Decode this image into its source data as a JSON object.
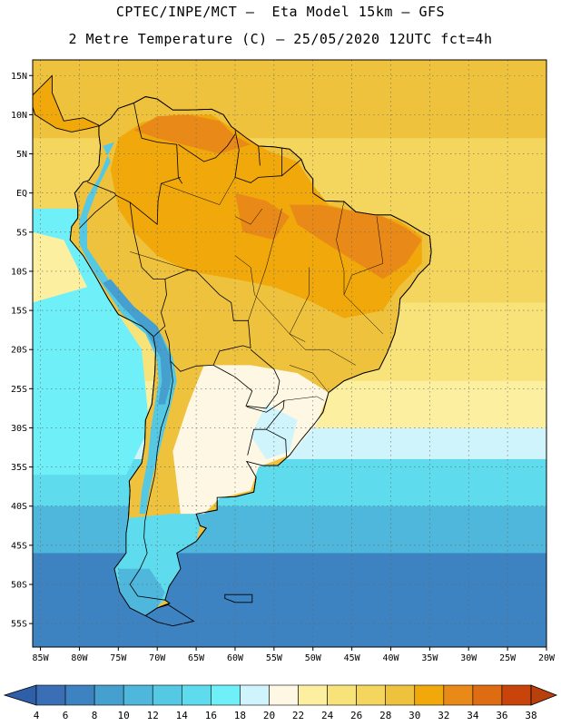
{
  "header": {
    "title_line1": "CPTEC/INPE/MCT –  Eta Model 15km – GFS",
    "title_line2": "2 Metre Temperature (C) – 25/05/2020 12UTC fct=4h"
  },
  "map": {
    "region": "South America",
    "lat_range": [
      -58,
      17
    ],
    "lon_range": [
      -86,
      -20
    ],
    "lat_labels": [
      {
        "lat": 15,
        "label": "15N"
      },
      {
        "lat": 10,
        "label": "10N"
      },
      {
        "lat": 5,
        "label": "5N"
      },
      {
        "lat": 0,
        "label": "EQ"
      },
      {
        "lat": -5,
        "label": "5S"
      },
      {
        "lat": -10,
        "label": "10S"
      },
      {
        "lat": -15,
        "label": "15S"
      },
      {
        "lat": -20,
        "label": "20S"
      },
      {
        "lat": -25,
        "label": "25S"
      },
      {
        "lat": -30,
        "label": "30S"
      },
      {
        "lat": -35,
        "label": "35S"
      },
      {
        "lat": -40,
        "label": "40S"
      },
      {
        "lat": -45,
        "label": "45S"
      },
      {
        "lat": -50,
        "label": "50S"
      },
      {
        "lat": -55,
        "label": "55S"
      }
    ],
    "lon_labels": [
      {
        "lon": -85,
        "label": "85W"
      },
      {
        "lon": -80,
        "label": "80W"
      },
      {
        "lon": -75,
        "label": "75W"
      },
      {
        "lon": -70,
        "label": "70W"
      },
      {
        "lon": -65,
        "label": "65W"
      },
      {
        "lon": -60,
        "label": "60W"
      },
      {
        "lon": -55,
        "label": "55W"
      },
      {
        "lon": -50,
        "label": "50W"
      },
      {
        "lon": -45,
        "label": "45W"
      },
      {
        "lon": -40,
        "label": "40W"
      },
      {
        "lon": -35,
        "label": "35W"
      },
      {
        "lon": -30,
        "label": "30W"
      },
      {
        "lon": -25,
        "label": "25W"
      },
      {
        "lon": -20,
        "label": "20W"
      }
    ]
  },
  "colorbar": {
    "unit": "C",
    "labels": [
      "4",
      "6",
      "8",
      "10",
      "12",
      "14",
      "16",
      "18",
      "20",
      "22",
      "24",
      "26",
      "28",
      "30",
      "32",
      "34",
      "36",
      "38"
    ],
    "colors": [
      "#3a6fb5",
      "#3d83c2",
      "#45a0cf",
      "#4fb6dc",
      "#55c8e4",
      "#5fdbee",
      "#6ff0f8",
      "#d0f4fb",
      "#fdf7e3",
      "#fcefa0",
      "#f8e37a",
      "#f4d65e",
      "#efc23e",
      "#f0a80a",
      "#e98a18",
      "#dd6c12",
      "#c9440b"
    ],
    "under_color": "#2f5fa8",
    "over_color": "#b8400a"
  },
  "temperature_field": {
    "ocean_bands": [
      {
        "lat_top": 17,
        "lat_bottom": 7,
        "value_c": 29
      },
      {
        "lat_top": 7,
        "lat_bottom": -14,
        "value_c": 27
      },
      {
        "lat_top": -14,
        "lat_bottom": -24,
        "value_c": 25
      },
      {
        "lat_top": -24,
        "lat_bottom": -30,
        "value_c": 23
      },
      {
        "lat_top": -30,
        "lat_bottom": -34,
        "value_c": 19
      },
      {
        "lat_top": -34,
        "lat_bottom": -40,
        "value_c": 15
      },
      {
        "lat_top": -40,
        "lat_bottom": -46,
        "value_c": 11
      },
      {
        "lat_top": -46,
        "lat_bottom": -58,
        "value_c": 7
      }
    ],
    "pacific_tropical_value_c": 17,
    "continent_interior_value_c": 29,
    "amazon_value_c": 31,
    "north_brazil_value_c": 33,
    "andes_value_c": 13,
    "southern_cone_value_c": 21
  }
}
